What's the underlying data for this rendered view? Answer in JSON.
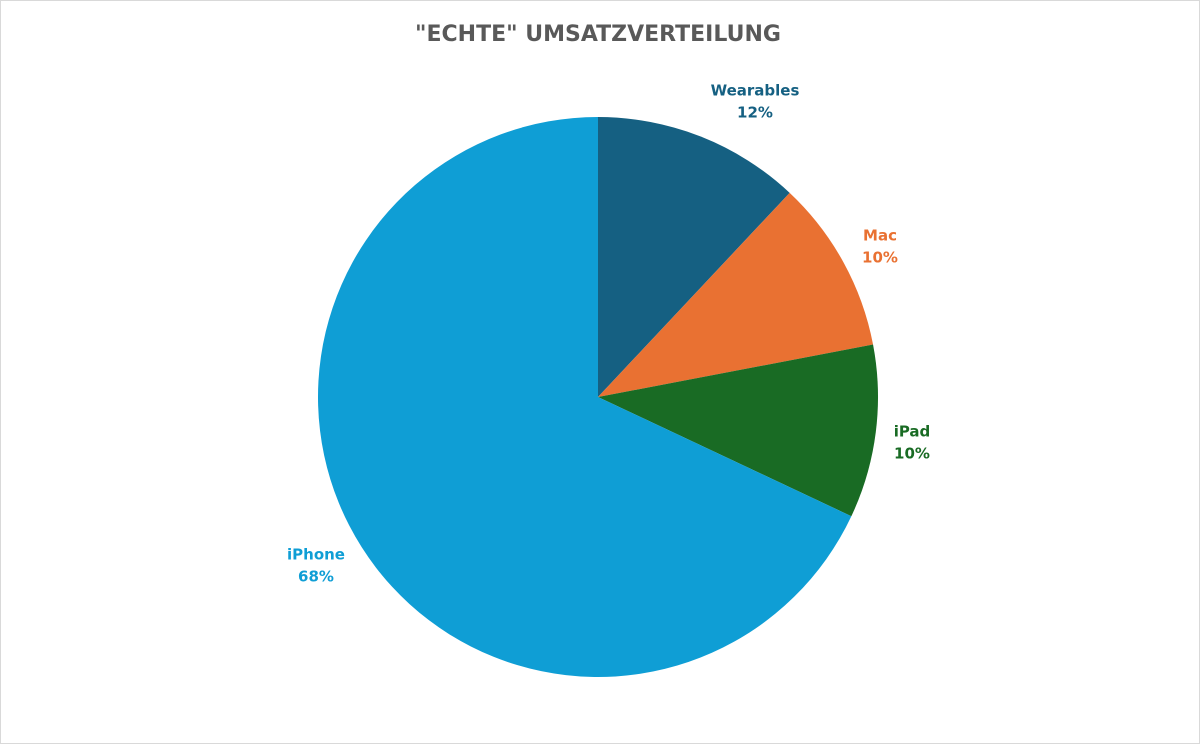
{
  "chart_data": {
    "type": "pie",
    "title": "\"ECHTE\" UMSATZVERTEILUNG",
    "categories": [
      "Wearables",
      "Mac",
      "iPad",
      "iPhone"
    ],
    "values": [
      12,
      10,
      10,
      68
    ],
    "value_labels": [
      "12%",
      "10%",
      "10%",
      "68%"
    ],
    "colors": [
      "#156082",
      "#e97132",
      "#196b24",
      "#0f9ed5"
    ]
  }
}
